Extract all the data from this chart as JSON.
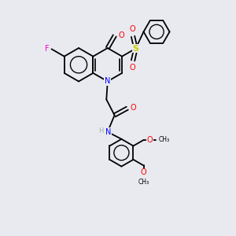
{
  "bg_color": "#e8eaf0",
  "bond_color": "#000000",
  "atom_colors": {
    "N": "#0000ff",
    "O": "#ff0000",
    "S": "#cccc00",
    "F": "#ff00cc",
    "H": "#aaaaaa",
    "C": "#000000"
  },
  "lw": 1.3,
  "fs": 7.0
}
